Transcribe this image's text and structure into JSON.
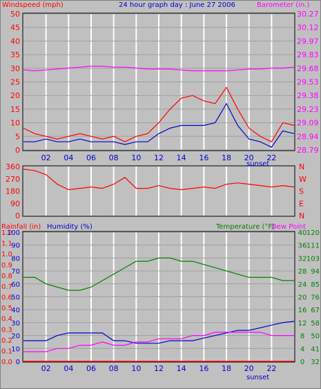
{
  "title": "24 hour graph day : June 27 2006",
  "colors": {
    "background": "#c0c0c0",
    "grid": "#ffffff",
    "windspeed": "#ff0000",
    "wind_avg": "#0000cc",
    "barometer": "#ff00ff",
    "direction": "#ff0000",
    "rainfall": "#ff0000",
    "humidity": "#0000cc",
    "temperature": "#008000",
    "dewpoint": "#ff00ff",
    "axis_blue": "#0000cc",
    "axis_green": "#008000"
  },
  "chart_data": [
    {
      "type": "line",
      "panel": "wind-barometer",
      "left_label": "Windspeed (mph)",
      "right_label": "Barometer (in.)",
      "xlabel": "sunset",
      "x_ticks": [
        "02",
        "04",
        "06",
        "08",
        "10",
        "12",
        "14",
        "16",
        "18",
        "20",
        "22"
      ],
      "ylim": [
        0,
        50
      ],
      "y_ticks": [
        0,
        5,
        10,
        15,
        20,
        25,
        30,
        35,
        40,
        45,
        50
      ],
      "right_ylim": [
        28.79,
        30.27
      ],
      "right_ticks": [
        "28.79",
        "28.94",
        "29.09",
        "29.23",
        "29.38",
        "29.53",
        "29.68",
        "29.83",
        "29.97",
        "30.12",
        "30.27"
      ],
      "x_hours": [
        0,
        1,
        2,
        3,
        4,
        5,
        6,
        7,
        8,
        9,
        10,
        11,
        12,
        13,
        14,
        15,
        16,
        17,
        18,
        19,
        20,
        21,
        22,
        23,
        24
      ],
      "windspeed": [
        8,
        6,
        5,
        4,
        5,
        6,
        5,
        4,
        5,
        3,
        5,
        6,
        10,
        15,
        19,
        20,
        18,
        17,
        23,
        15,
        8,
        5,
        3,
        10,
        9
      ],
      "wind_avg": [
        3,
        3,
        4,
        3,
        3,
        4,
        3,
        3,
        3,
        2,
        3,
        3,
        6,
        8,
        9,
        9,
        9,
        10,
        17,
        9,
        4,
        3,
        1,
        7,
        6
      ],
      "barometer": [
        29.66,
        29.65,
        29.66,
        29.67,
        29.68,
        29.69,
        29.7,
        29.7,
        29.69,
        29.69,
        29.68,
        29.67,
        29.67,
        29.67,
        29.66,
        29.65,
        29.65,
        29.65,
        29.65,
        29.66,
        29.67,
        29.67,
        29.68,
        29.68,
        29.69
      ]
    },
    {
      "type": "line",
      "panel": "wind-direction",
      "ylim": [
        0,
        360
      ],
      "y_ticks": [
        "0",
        "90",
        "180",
        "270",
        "360"
      ],
      "right_ticks": [
        "N",
        "E",
        "S",
        "W",
        "N"
      ],
      "x_hours": [
        0,
        1,
        2,
        3,
        4,
        5,
        6,
        7,
        8,
        9,
        10,
        11,
        12,
        13,
        14,
        15,
        16,
        17,
        18,
        19,
        20,
        21,
        22,
        23,
        24
      ],
      "direction": [
        340,
        330,
        300,
        230,
        190,
        200,
        210,
        200,
        230,
        280,
        200,
        200,
        220,
        200,
        190,
        200,
        210,
        200,
        230,
        240,
        230,
        220,
        210,
        220,
        210
      ]
    },
    {
      "type": "line",
      "panel": "rain-humidity-temp",
      "left_label": "Rainfall (in)",
      "mid_label": "Humidity (%)",
      "right_label": "Temperature (°F)",
      "right2_label": "Dew Point",
      "xlabel": "sunset",
      "x_ticks": [
        "02",
        "04",
        "06",
        "08",
        "10",
        "12",
        "14",
        "16",
        "18",
        "20",
        "22"
      ],
      "rain_ticks": [
        "0.0",
        "0.1",
        "0.2",
        "0.3",
        "0.4",
        "0.5",
        "0.6",
        "0.7",
        "0.8",
        "0.9",
        "1.0",
        "1.1",
        "1.2"
      ],
      "humidity_ticks": [
        "0",
        "10",
        "20",
        "30",
        "40",
        "50",
        "60",
        "70",
        "80",
        "90",
        "100"
      ],
      "temp_c_ticks": [
        "0",
        "4",
        "8",
        "12",
        "16",
        "20",
        "24",
        "28",
        "32",
        "36",
        "40"
      ],
      "temp_f_ticks": [
        "32",
        "41",
        "50",
        "58",
        "67",
        "76",
        "85",
        "94",
        "103",
        "111",
        "120"
      ],
      "x_hours": [
        0,
        1,
        2,
        3,
        4,
        5,
        6,
        7,
        8,
        9,
        10,
        11,
        12,
        13,
        14,
        15,
        16,
        17,
        18,
        19,
        20,
        21,
        22,
        23,
        24
      ],
      "humidity": [
        16,
        16,
        16,
        20,
        22,
        22,
        22,
        22,
        16,
        16,
        14,
        14,
        14,
        16,
        16,
        16,
        18,
        20,
        22,
        24,
        24,
        26,
        28,
        30,
        31
      ],
      "temperature_c": [
        26,
        26,
        24,
        23,
        22,
        22,
        23,
        25,
        27,
        29,
        31,
        31,
        32,
        32,
        31,
        31,
        30,
        29,
        28,
        27,
        26,
        26,
        26,
        25,
        25
      ],
      "dewpoint_c": [
        3,
        3,
        3,
        4,
        4,
        5,
        5,
        6,
        5,
        5,
        6,
        6,
        7,
        7,
        7,
        8,
        8,
        9,
        9,
        9,
        9,
        9,
        8,
        8,
        8
      ],
      "rainfall": [
        0,
        0,
        0,
        0,
        0,
        0,
        0,
        0,
        0,
        0,
        0,
        0,
        0,
        0,
        0,
        0,
        0,
        0,
        0,
        0,
        0,
        0,
        0,
        0,
        0
      ]
    }
  ]
}
